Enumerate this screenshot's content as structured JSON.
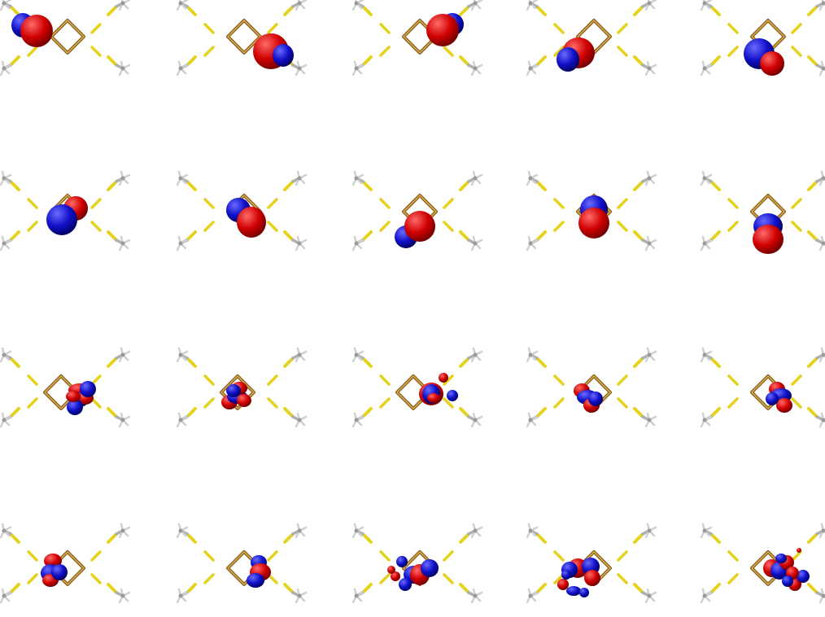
{
  "figure": {
    "rows": 4,
    "columns": 5,
    "panel_count": 20,
    "content": "isosurface",
    "colors": {
      "background": "#ffffff",
      "positive_lobe": "#d00000",
      "negative_lobe": "#1010c8",
      "iron_sulfur_core": "#8a5a1c",
      "sulfur": "#e6d21e",
      "carbon_hydrogen": "#9a9a9a"
    }
  }
}
